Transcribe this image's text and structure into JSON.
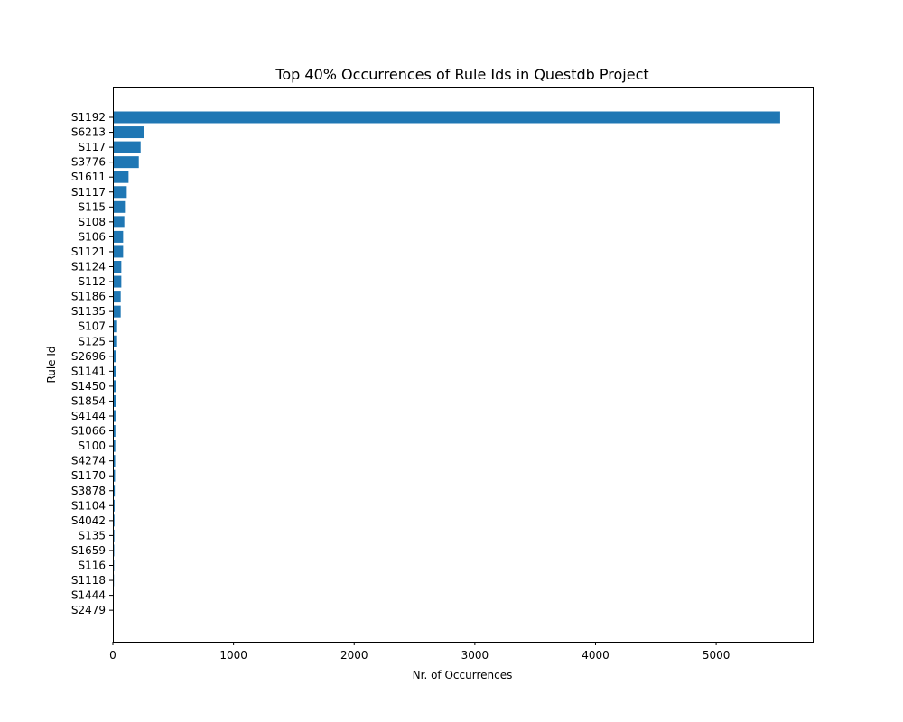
{
  "chart_data": {
    "type": "bar",
    "orientation": "horizontal",
    "title": "Top 40% Occurrences of Rule Ids in Questdb Project",
    "xlabel": "Nr. of Occurrences",
    "ylabel": "Rule Id",
    "xlim": [
      0,
      5800
    ],
    "xticks": [
      0,
      1000,
      2000,
      3000,
      4000,
      5000
    ],
    "bar_color": "#1f77b4",
    "grid": false,
    "categories": [
      "S1192",
      "S6213",
      "S117",
      "S3776",
      "S1611",
      "S1117",
      "S115",
      "S108",
      "S106",
      "S1121",
      "S1124",
      "S112",
      "S1186",
      "S1135",
      "S107",
      "S125",
      "S2696",
      "S1141",
      "S1450",
      "S1854",
      "S4144",
      "S1066",
      "S100",
      "S4274",
      "S1170",
      "S3878",
      "S1104",
      "S4042",
      "S135",
      "S1659",
      "S116",
      "S1118",
      "S1444",
      "S2479"
    ],
    "values": [
      5530,
      255,
      230,
      215,
      130,
      115,
      100,
      95,
      85,
      85,
      70,
      70,
      65,
      65,
      35,
      35,
      30,
      28,
      27,
      26,
      22,
      21,
      20,
      19,
      18,
      16,
      14,
      13,
      12,
      11,
      10,
      9,
      7,
      6
    ]
  }
}
